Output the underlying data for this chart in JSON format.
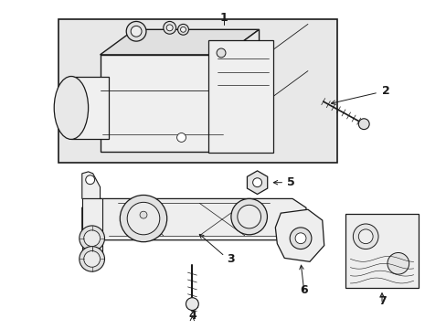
{
  "bg_color": "#ffffff",
  "box_bg": "#e8e8e8",
  "lc": "#1a1a1a",
  "lw": 0.8,
  "fig_w": 4.89,
  "fig_h": 3.6,
  "dpi": 100
}
